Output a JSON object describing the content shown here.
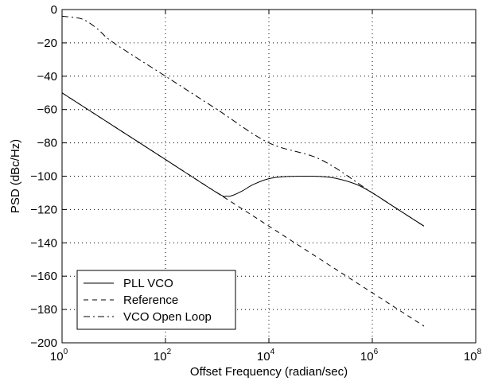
{
  "chart_data": {
    "type": "line",
    "xscale": "log",
    "xlabel": "Offset Frequency (radian/sec)",
    "ylabel": "PSD (dBc/Hz)",
    "xlim": [
      1,
      100000000
    ],
    "ylim": [
      -200,
      0
    ],
    "grid": true,
    "legend_position": "bottom-left",
    "x_ticks": [
      {
        "base": "10",
        "exp": "0",
        "value": 1
      },
      {
        "base": "10",
        "exp": "2",
        "value": 100
      },
      {
        "base": "10",
        "exp": "4",
        "value": 10000
      },
      {
        "base": "10",
        "exp": "6",
        "value": 1000000
      },
      {
        "base": "10",
        "exp": "8",
        "value": 100000000
      }
    ],
    "y_ticks": [
      {
        "label": "0",
        "value": 0
      },
      {
        "label": "−20",
        "value": -20
      },
      {
        "label": "−40",
        "value": -40
      },
      {
        "label": "−60",
        "value": -60
      },
      {
        "label": "−80",
        "value": -80
      },
      {
        "label": "−100",
        "value": -100
      },
      {
        "label": "−120",
        "value": -120
      },
      {
        "label": "−140",
        "value": -140
      },
      {
        "label": "−160",
        "value": -160
      },
      {
        "label": "−180",
        "value": -180
      },
      {
        "label": "−200",
        "value": -200
      }
    ],
    "series": [
      {
        "name": "PLL VCO",
        "dash": "solid",
        "x": [
          1,
          10,
          100,
          1000,
          1500,
          2000,
          3000,
          5000,
          10000,
          20000,
          50000,
          100000,
          200000,
          500000,
          1000000,
          2000000,
          5000000,
          10000000
        ],
        "y": [
          -50,
          -70,
          -90,
          -110,
          -112,
          -111.5,
          -109,
          -105,
          -101.5,
          -100.3,
          -100,
          -100.2,
          -101.3,
          -105,
          -110,
          -116,
          -124,
          -130
        ]
      },
      {
        "name": "Reference",
        "dash": "dashed",
        "x": [
          1,
          1000,
          1500,
          10000000
        ],
        "y": [
          -50,
          -110,
          -113.5,
          -190
        ]
      },
      {
        "name": "VCO Open Loop",
        "dash": "dashdot",
        "x": [
          1,
          2,
          3,
          5,
          10,
          100,
          1000,
          10000,
          100000,
          1000000,
          10000000
        ],
        "y": [
          -4,
          -5,
          -7,
          -12,
          -20,
          -40,
          -60,
          -80,
          -90,
          -110,
          -130
        ]
      }
    ]
  }
}
